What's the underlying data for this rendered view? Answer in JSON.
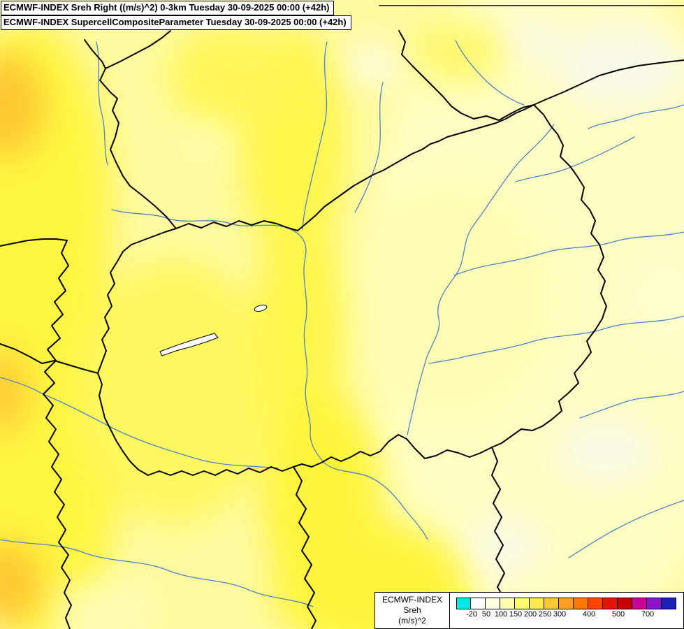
{
  "header": {
    "line1": "ECMWF-INDEX Sreh Right ((m/s)^2) 0-3km Tuesday 30-09-2025 00:00 (+42h)",
    "line2": "ECMWF-INDEX SupercellCompositeParameter Tuesday 30-09-2025 00:00 (+42h)"
  },
  "legend": {
    "title": "ECMWF-INDEX",
    "subtitle": "Sreh",
    "units": "(m/s)^2",
    "colors": [
      "#00E8E8",
      "#FFFFFF",
      "#FFFFDE",
      "#FFFFB0",
      "#FFFF6E",
      "#FFE850",
      "#FFC832",
      "#FFA01E",
      "#FF780A",
      "#FF4600",
      "#E61400",
      "#C80000",
      "#C8009B",
      "#8C14C8",
      "#1E1EB9"
    ],
    "ticks": [
      {
        "label": "-20",
        "boundary": 1
      },
      {
        "label": "50",
        "boundary": 2
      },
      {
        "label": "100",
        "boundary": 3
      },
      {
        "label": "150",
        "boundary": 4
      },
      {
        "label": "200",
        "boundary": 5
      },
      {
        "label": "250",
        "boundary": 6
      },
      {
        "label": "300",
        "boundary": 7
      },
      {
        "label": "400",
        "boundary": 9
      },
      {
        "label": "500",
        "boundary": 11
      },
      {
        "label": "700",
        "boundary": 13
      }
    ]
  },
  "map": {
    "palette": {
      "base_yellow": "#FFFAA0",
      "pale_yellow": "#FFFEC2",
      "near_white": "#FAFAE8",
      "bright_yellow": "#FFF542",
      "orange_patch": "#FFC832",
      "river_blue": "#4E82C8",
      "border_black": "#000000",
      "lake_white": "#FFFFFF"
    }
  }
}
